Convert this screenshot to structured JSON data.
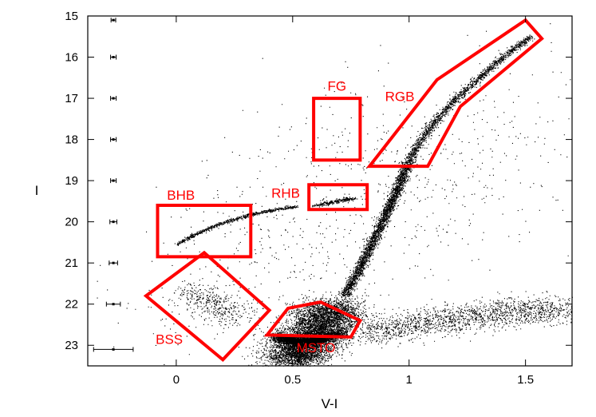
{
  "chart_data": {
    "type": "scatter",
    "xlabel": "V-I",
    "ylabel": "I",
    "xlim": [
      -0.38,
      1.7
    ],
    "ylim": [
      23.5,
      15.0
    ],
    "y_inverted": true,
    "x_ticks": [
      "0",
      "0.5",
      "1",
      "1.5"
    ],
    "x_tick_values": [
      0,
      0.5,
      1,
      1.5
    ],
    "y_ticks": [
      "15",
      "16",
      "17",
      "18",
      "19",
      "20",
      "21",
      "22",
      "23"
    ],
    "y_tick_values": [
      15,
      16,
      17,
      18,
      19,
      20,
      21,
      22,
      23
    ],
    "grid": false,
    "point_color": "#000000",
    "region_color": "#ff0000",
    "regions": [
      {
        "label": "FG",
        "polygon": [
          [
            0.59,
            17.0
          ],
          [
            0.79,
            17.0
          ],
          [
            0.79,
            18.5
          ],
          [
            0.59,
            18.5
          ]
        ],
        "label_at": [
          0.69,
          16.7
        ]
      },
      {
        "label": "RGB",
        "polygon": [
          [
            1.5,
            15.1
          ],
          [
            1.57,
            15.55
          ],
          [
            1.22,
            17.2
          ],
          [
            1.08,
            18.65
          ],
          [
            0.83,
            18.65
          ],
          [
            1.12,
            16.55
          ]
        ],
        "label_at": [
          0.96,
          16.95
        ]
      },
      {
        "label": "RHB",
        "polygon": [
          [
            0.57,
            19.1
          ],
          [
            0.82,
            19.1
          ],
          [
            0.82,
            19.7
          ],
          [
            0.57,
            19.7
          ]
        ],
        "label_at": [
          0.47,
          19.3
        ]
      },
      {
        "label": "BHB",
        "polygon": [
          [
            -0.08,
            19.6
          ],
          [
            0.32,
            19.6
          ],
          [
            0.32,
            20.85
          ],
          [
            -0.08,
            20.85
          ]
        ],
        "label_at": [
          0.02,
          19.35
        ]
      },
      {
        "label": "BSS",
        "polygon": [
          [
            0.12,
            20.75
          ],
          [
            0.4,
            22.15
          ],
          [
            0.2,
            23.35
          ],
          [
            -0.13,
            21.8
          ]
        ],
        "label_at": [
          -0.03,
          22.85
        ]
      },
      {
        "label": "MSTO",
        "polygon": [
          [
            0.39,
            22.75
          ],
          [
            0.48,
            22.1
          ],
          [
            0.62,
            21.95
          ],
          [
            0.79,
            22.4
          ],
          [
            0.75,
            22.8
          ]
        ],
        "label_at": [
          0.6,
          23.05
        ]
      }
    ],
    "error_bars": [
      {
        "y": 15.1,
        "x": -0.27,
        "xerr": 0.01
      },
      {
        "y": 16.0,
        "x": -0.27,
        "xerr": 0.012
      },
      {
        "y": 17.0,
        "x": -0.27,
        "xerr": 0.012
      },
      {
        "y": 18.0,
        "x": -0.27,
        "xerr": 0.012
      },
      {
        "y": 19.0,
        "x": -0.27,
        "xerr": 0.012
      },
      {
        "y": 20.0,
        "x": -0.27,
        "xerr": 0.015
      },
      {
        "y": 21.0,
        "x": -0.27,
        "xerr": 0.018
      },
      {
        "y": 22.0,
        "x": -0.27,
        "xerr": 0.03
      },
      {
        "y": 23.1,
        "x": -0.27,
        "xerr": 0.085
      }
    ],
    "stellar_sequences": [
      {
        "name": "main-sequence",
        "path": [
          [
            0.5,
            23.4
          ],
          [
            0.55,
            23.0
          ],
          [
            0.62,
            22.5
          ],
          [
            0.68,
            22.0
          ]
        ],
        "count": 6000,
        "spread": [
          0.14,
          0.25
        ]
      },
      {
        "name": "msto-core",
        "path": [
          [
            0.44,
            22.8
          ],
          [
            0.55,
            22.95
          ],
          [
            0.7,
            22.7
          ]
        ],
        "count": 2500,
        "spread": [
          0.05,
          0.1
        ]
      },
      {
        "name": "subgiant-branch",
        "path": [
          [
            0.72,
            21.8
          ],
          [
            0.78,
            21.2
          ],
          [
            0.84,
            20.5
          ],
          [
            0.9,
            19.8
          ],
          [
            0.95,
            19.2
          ],
          [
            1.0,
            18.5
          ]
        ],
        "count": 2600,
        "spread": [
          0.025,
          0.06
        ]
      },
      {
        "name": "red-giant-branch",
        "path": [
          [
            1.0,
            18.5
          ],
          [
            1.05,
            18.0
          ],
          [
            1.12,
            17.5
          ],
          [
            1.2,
            17.0
          ],
          [
            1.3,
            16.5
          ],
          [
            1.4,
            16.0
          ],
          [
            1.52,
            15.5
          ]
        ],
        "count": 1500,
        "spread": [
          0.022,
          0.05
        ]
      },
      {
        "name": "red-horizontal-branch",
        "path": [
          [
            0.6,
            19.6
          ],
          [
            0.68,
            19.5
          ],
          [
            0.76,
            19.42
          ]
        ],
        "count": 250,
        "spread": [
          0.03,
          0.03
        ]
      },
      {
        "name": "blue-horizontal-branch",
        "path": [
          [
            0.0,
            20.55
          ],
          [
            0.08,
            20.3
          ],
          [
            0.18,
            20.05
          ],
          [
            0.3,
            19.85
          ],
          [
            0.4,
            19.72
          ],
          [
            0.52,
            19.62
          ]
        ],
        "count": 700,
        "spread": [
          0.012,
          0.035
        ]
      },
      {
        "name": "blue-stragglers",
        "path": [
          [
            0.05,
            21.6
          ],
          [
            0.15,
            22.0
          ],
          [
            0.25,
            22.3
          ]
        ],
        "count": 400,
        "spread": [
          0.12,
          0.3
        ]
      },
      {
        "name": "faint-wing",
        "path": [
          [
            0.8,
            22.7
          ],
          [
            1.1,
            22.4
          ],
          [
            1.4,
            22.2
          ],
          [
            1.68,
            22.1
          ]
        ],
        "count": 1700,
        "spread": [
          0.12,
          0.35
        ]
      },
      {
        "name": "field-background",
        "path": [
          [
            0.1,
            22.5
          ],
          [
            0.7,
            19.5
          ],
          [
            1.5,
            17.5
          ]
        ],
        "count": 900,
        "spread": [
          0.55,
          2.4
        ]
      }
    ]
  }
}
